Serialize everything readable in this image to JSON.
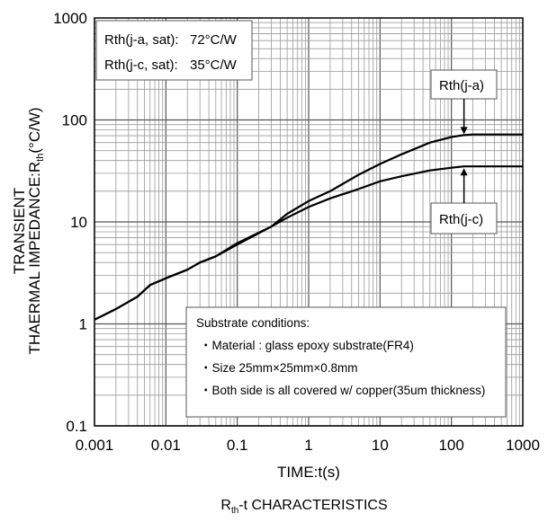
{
  "chart_data": {
    "type": "line",
    "xscale": "log",
    "yscale": "log",
    "xlim": [
      0.001,
      1000
    ],
    "ylim": [
      0.1,
      1000
    ],
    "grid": true,
    "xlabel": "TIME:t(s)",
    "ylabel_line1": "TRANSIENT",
    "ylabel_line2_prefix": "THAERMAL IMPEDANCE:R",
    "ylabel_line2_sub": "th",
    "ylabel_line2_suffix": "(°C/W)",
    "title_prefix": "R",
    "title_sub": "th",
    "title_suffix": "-t CHARACTERISTICS",
    "x_ticks": [
      "0.001",
      "0.01",
      "0.1",
      "1",
      "10",
      "100",
      "1000"
    ],
    "y_ticks": [
      "1000",
      "100",
      "10",
      "1",
      "0.1"
    ],
    "x_tick_values": [
      0.001,
      0.01,
      0.1,
      1,
      10,
      100,
      1000
    ],
    "y_tick_values": [
      1000,
      100,
      10,
      1,
      0.1
    ],
    "series": [
      {
        "name": "Rth(j-a)",
        "x": [
          0.001,
          0.002,
          0.004,
          0.006,
          0.01,
          0.02,
          0.03,
          0.05,
          0.1,
          0.3,
          0.5,
          1,
          2,
          5,
          10,
          20,
          50,
          100,
          150,
          200,
          500,
          1000
        ],
        "y": [
          1.1,
          1.4,
          1.85,
          2.4,
          2.8,
          3.4,
          4.0,
          4.6,
          6.2,
          9.0,
          12.0,
          16.0,
          20.0,
          29.0,
          37.0,
          46.0,
          60.0,
          68.0,
          71.0,
          72.0,
          72.0,
          72.0
        ]
      },
      {
        "name": "Rth(j-c)",
        "x": [
          0.001,
          0.002,
          0.004,
          0.006,
          0.01,
          0.02,
          0.03,
          0.05,
          0.1,
          0.3,
          0.5,
          1,
          2,
          5,
          10,
          20,
          50,
          100,
          150,
          200,
          500,
          1000
        ],
        "y": [
          1.1,
          1.4,
          1.85,
          2.4,
          2.8,
          3.4,
          4.0,
          4.6,
          6.0,
          9.0,
          11.0,
          14.0,
          17.0,
          21.0,
          25.0,
          28.0,
          32.0,
          34.0,
          35.0,
          35.0,
          35.0,
          35.0
        ]
      }
    ],
    "sat_box": {
      "line1_label": "Rth(j-a, sat):",
      "line1_value": "72°C/W",
      "line2_label": "Rth(j-c, sat):",
      "line2_value": "35°C/W"
    },
    "annotations": [
      {
        "label": "Rth(j-a)",
        "x": 150,
        "y": 71
      },
      {
        "label": "Rth(j-c)",
        "x": 150,
        "y": 35
      }
    ],
    "substrate_note": {
      "title": "Substrate conditions:",
      "lines": [
        "・Material : glass epoxy substrate(FR4)",
        "・Size 25mm×25mm×0.8mm",
        "・Both side is all covered w/ copper(35um thickness)"
      ]
    }
  }
}
